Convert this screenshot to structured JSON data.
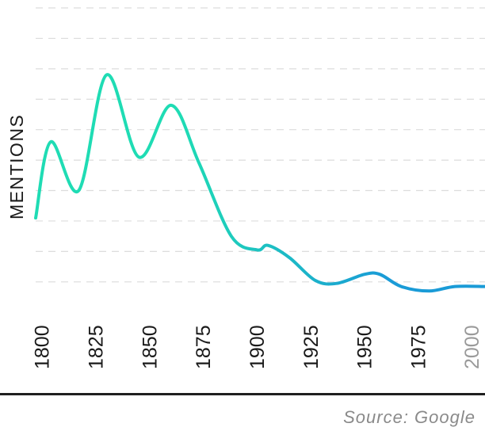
{
  "source_text": "Source: Google",
  "chart_data": {
    "type": "line",
    "ylabel": "MENTIONS",
    "xlabel": "",
    "title": "",
    "x_ticks": [
      1800,
      1825,
      1850,
      1875,
      1900,
      1925,
      1950,
      1975,
      2000
    ],
    "xlim": [
      1797,
      2006
    ],
    "ylim": [
      0,
      9.5
    ],
    "grid": true,
    "y_grid_levels": [
      0.5,
      1.5,
      2.5,
      3.5,
      4.5,
      5.5,
      6.5,
      7.5,
      8.5,
      9.5
    ],
    "colors": {
      "early": "#1fdcb4",
      "late": "#1a9bd7",
      "muted_tick": "#9a9a9a",
      "tick": "#1a1a1a"
    },
    "series": [
      {
        "x": [
          1797,
          1804,
          1817,
          1830,
          1845,
          1860,
          1873,
          1888,
          1900,
          1905,
          1915,
          1927,
          1937,
          1950,
          1957,
          1967,
          1980,
          1992,
          2006
        ],
        "y": [
          2.6,
          5.1,
          3.5,
          7.3,
          4.6,
          6.3,
          4.4,
          2.0,
          1.55,
          1.7,
          1.3,
          0.55,
          0.45,
          0.75,
          0.75,
          0.35,
          0.2,
          0.35,
          0.35
        ]
      }
    ]
  }
}
